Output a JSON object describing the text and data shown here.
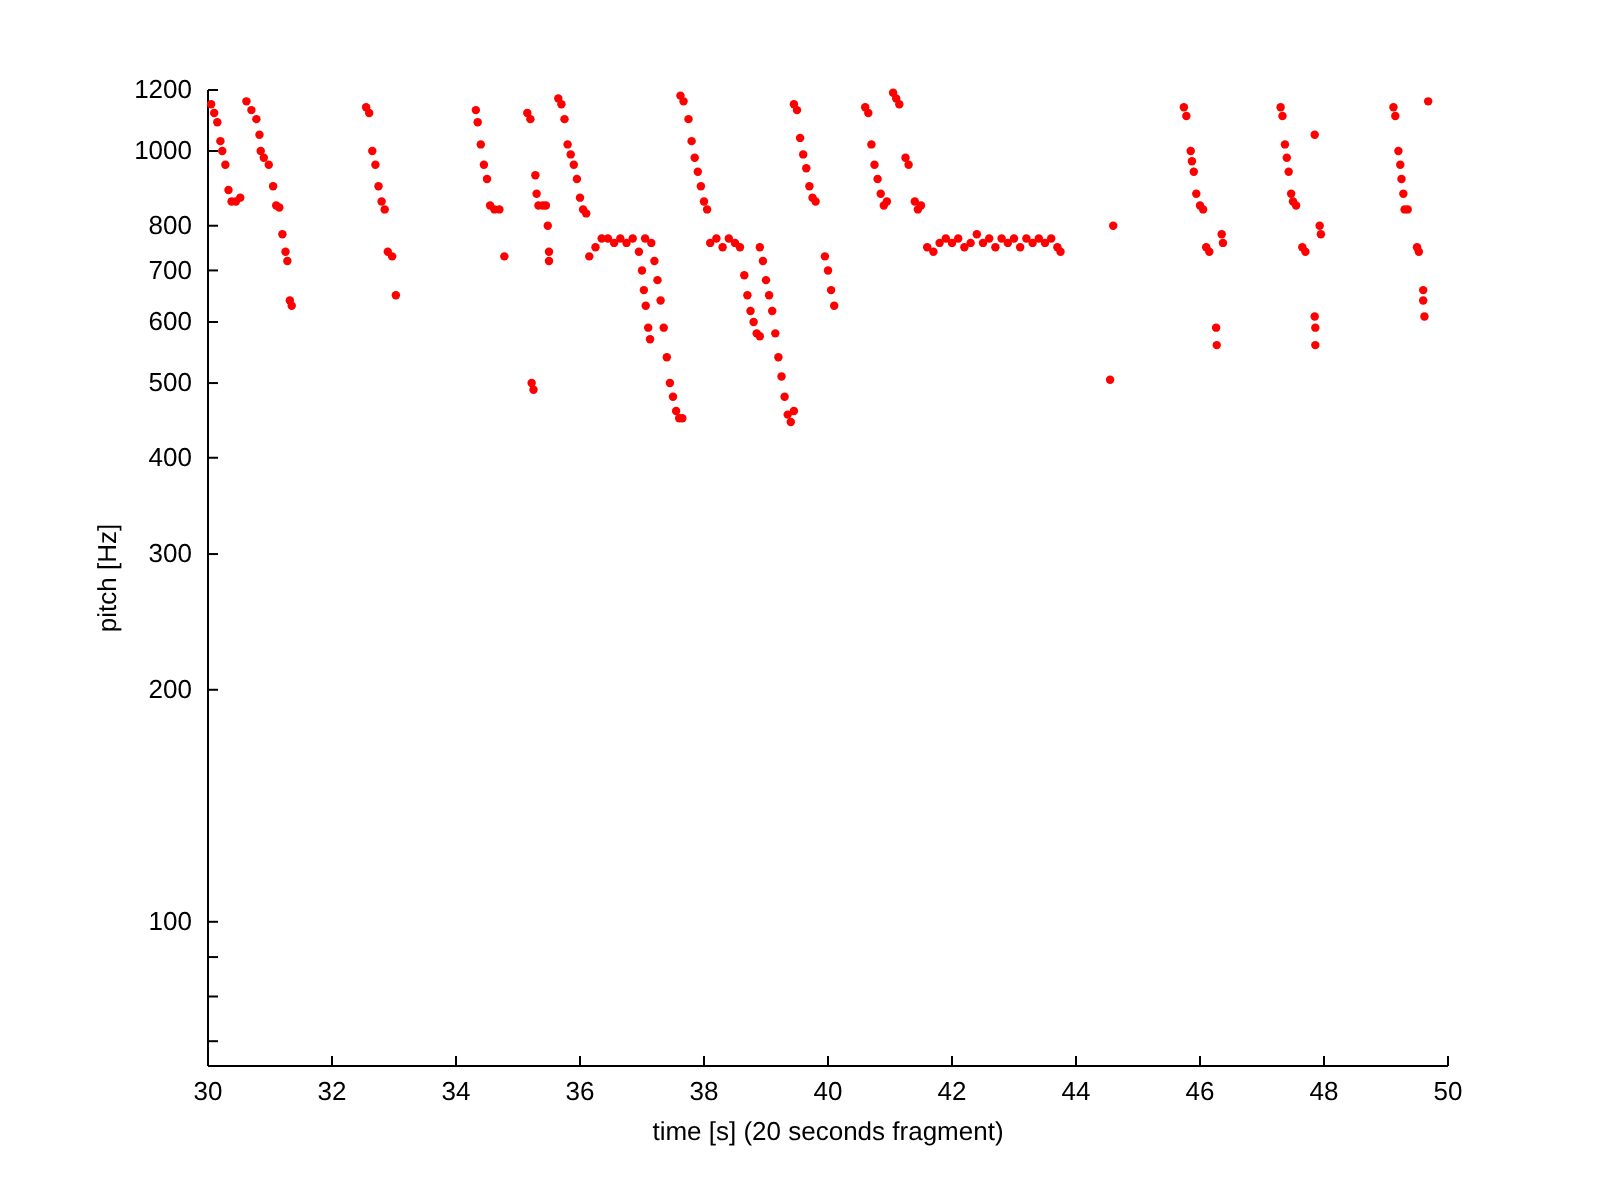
{
  "chart_data": {
    "type": "scatter",
    "xlabel": "time [s] (20 seconds fragment)",
    "ylabel": "pitch [Hz]",
    "log": "y",
    "marker": "circle",
    "xlim": [
      30,
      50
    ],
    "xticks": [
      30,
      32,
      34,
      36,
      38,
      40,
      42,
      44,
      46,
      48,
      50
    ],
    "ylim": [
      65,
      1200
    ],
    "yticks": [
      {
        "value": 70,
        "label": null
      },
      {
        "value": 80,
        "label": null
      },
      {
        "value": 90,
        "label": null
      },
      100,
      200,
      300,
      400,
      500,
      600,
      700,
      800,
      1000,
      1200
    ],
    "series": [
      {
        "color": "#ff0000",
        "x": [
          30.05,
          30.1,
          30.15,
          30.2,
          30.23,
          30.28,
          30.33,
          30.38,
          30.45,
          30.52,
          30.62,
          30.7,
          30.78,
          30.83,
          30.85,
          30.9,
          30.98,
          31.05,
          31.1,
          31.15,
          31.2,
          31.25,
          31.28,
          31.32,
          31.35,
          32.55,
          32.6,
          32.65,
          32.7,
          32.75,
          32.8,
          32.85,
          32.9,
          32.97,
          33.03,
          34.32,
          34.35,
          34.4,
          34.45,
          34.5,
          34.55,
          34.62,
          34.7,
          34.78,
          35.15,
          35.2,
          35.22,
          35.25,
          35.28,
          35.3,
          35.33,
          35.4,
          35.45,
          35.48,
          35.5,
          35.5,
          35.65,
          35.7,
          35.75,
          35.8,
          35.85,
          35.9,
          35.95,
          36.0,
          36.05,
          36.1,
          36.15,
          36.25,
          36.35,
          36.45,
          36.55,
          36.65,
          36.75,
          36.85,
          36.95,
          37.05,
          37.15,
          37.0,
          37.03,
          37.06,
          37.1,
          37.13,
          37.2,
          37.25,
          37.3,
          37.35,
          37.4,
          37.45,
          37.5,
          37.55,
          37.6,
          37.65,
          37.62,
          37.67,
          37.75,
          37.8,
          37.85,
          37.9,
          37.95,
          38.0,
          38.05,
          38.1,
          38.2,
          38.3,
          38.4,
          38.5,
          38.58,
          38.65,
          38.7,
          38.75,
          38.8,
          38.85,
          38.9,
          38.9,
          38.95,
          39.0,
          39.05,
          39.1,
          39.15,
          39.2,
          39.25,
          39.3,
          39.35,
          39.4,
          39.45,
          39.45,
          39.5,
          39.55,
          39.6,
          39.65,
          39.7,
          39.75,
          39.8,
          39.95,
          40.0,
          40.05,
          40.1,
          40.6,
          40.65,
          40.7,
          40.75,
          40.8,
          40.85,
          40.9,
          40.95,
          41.05,
          41.1,
          41.15,
          41.25,
          41.3,
          41.4,
          41.45,
          41.5,
          41.6,
          41.7,
          41.8,
          41.9,
          42.0,
          42.1,
          42.2,
          42.3,
          42.4,
          42.5,
          42.6,
          42.7,
          42.8,
          42.9,
          43.0,
          43.1,
          43.2,
          43.3,
          43.4,
          43.5,
          43.6,
          43.7,
          43.75,
          44.55,
          44.6,
          45.74,
          45.78,
          45.85,
          45.87,
          45.9,
          45.94,
          46.0,
          46.05,
          46.1,
          46.15,
          46.26,
          46.27,
          46.35,
          46.37,
          47.3,
          47.33,
          47.37,
          47.4,
          47.43,
          47.47,
          47.5,
          47.55,
          47.65,
          47.7,
          47.85,
          47.85,
          47.86,
          47.86,
          47.93,
          47.95,
          49.12,
          49.15,
          49.2,
          49.23,
          49.25,
          49.28,
          49.3,
          49.35,
          49.5,
          49.53,
          49.6,
          49.6,
          49.62,
          49.68
        ],
        "values": [
          1150,
          1120,
          1090,
          1030,
          1000,
          960,
          890,
          860,
          860,
          870,
          1160,
          1130,
          1100,
          1050,
          1000,
          980,
          960,
          900,
          850,
          845,
          780,
          740,
          720,
          640,
          630,
          1140,
          1120,
          1000,
          960,
          900,
          860,
          840,
          740,
          730,
          650,
          1130,
          1090,
          1020,
          960,
          920,
          850,
          840,
          840,
          730,
          1120,
          1100,
          500,
          490,
          930,
          880,
          850,
          850,
          850,
          800,
          740,
          720,
          1170,
          1150,
          1100,
          1020,
          990,
          960,
          920,
          870,
          840,
          830,
          730,
          750,
          770,
          770,
          760,
          770,
          760,
          770,
          740,
          770,
          760,
          700,
          660,
          630,
          590,
          570,
          720,
          680,
          640,
          590,
          540,
          500,
          480,
          460,
          450,
          450,
          1180,
          1160,
          1100,
          1030,
          980,
          940,
          900,
          860,
          840,
          760,
          770,
          750,
          770,
          760,
          750,
          690,
          650,
          620,
          600,
          580,
          575,
          750,
          720,
          680,
          650,
          620,
          580,
          540,
          510,
          480,
          455,
          445,
          460,
          1150,
          1130,
          1040,
          990,
          950,
          900,
          870,
          860,
          730,
          700,
          660,
          630,
          1140,
          1120,
          1020,
          960,
          920,
          880,
          850,
          860,
          1190,
          1170,
          1150,
          980,
          960,
          860,
          840,
          850,
          750,
          740,
          760,
          770,
          760,
          770,
          750,
          760,
          780,
          760,
          770,
          750,
          770,
          760,
          770,
          750,
          770,
          760,
          770,
          760,
          770,
          750,
          740,
          505,
          800,
          1140,
          1110,
          1000,
          970,
          940,
          880,
          850,
          840,
          750,
          740,
          590,
          560,
          780,
          760,
          1140,
          1110,
          1020,
          980,
          940,
          880,
          860,
          850,
          750,
          740,
          1050,
          610,
          590,
          560,
          800,
          780,
          1140,
          1110,
          1000,
          960,
          920,
          880,
          840,
          840,
          750,
          740,
          660,
          640,
          610,
          1160
        ]
      }
    ]
  }
}
